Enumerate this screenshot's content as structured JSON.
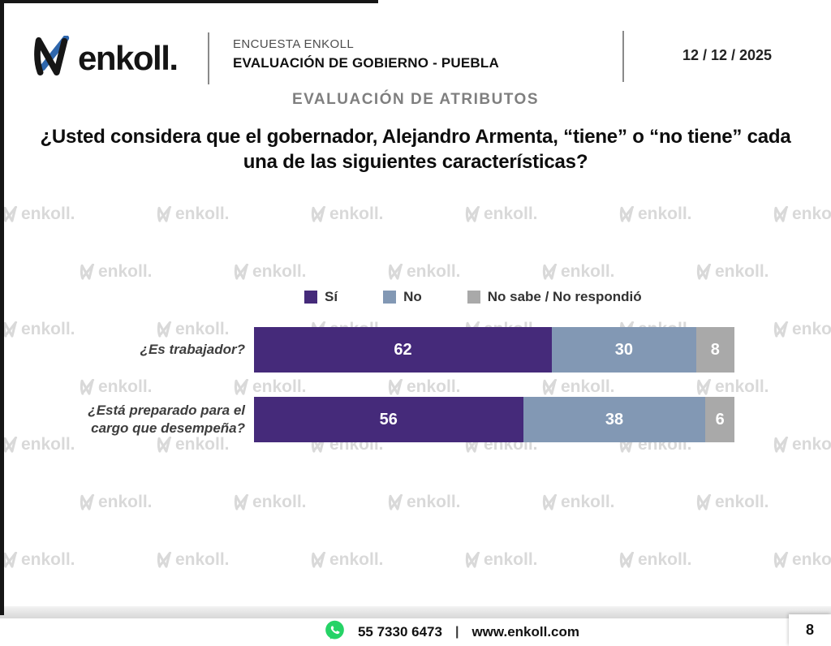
{
  "header": {
    "logo_text": "enkoll.",
    "survey_label": "ENCUESTA ENKOLL",
    "survey_title": "EVALUACIÓN DE GOBIERNO - PUEBLA",
    "date": "12 / 12 / 2025",
    "section_title": "EVALUACIÓN DE ATRIBUTOS"
  },
  "question": "¿Usted considera que el gobernador, Alejandro Armenta, “tiene” o “no tiene” cada una de las siguientes características?",
  "chart_data": {
    "type": "bar",
    "orientation": "horizontal",
    "stacked": true,
    "xlim": [
      0,
      100
    ],
    "legend_position": "top",
    "value_labels": "inside, white, bold",
    "categories": [
      "¿Es trabajador?",
      "¿Está preparado para el cargo que desempeña?"
    ],
    "series": [
      {
        "name": "Sí",
        "color": "#452a7a",
        "values": [
          62,
          56
        ]
      },
      {
        "name": "No",
        "color": "#8298b4",
        "values": [
          30,
          38
        ]
      },
      {
        "name": "No sabe / No respondió",
        "color": "#a9a9a9",
        "values": [
          8,
          6
        ]
      }
    ]
  },
  "watermark": {
    "text": "enkoll.",
    "color": "#d9d9d9"
  },
  "colors": {
    "logo_black": "#161616",
    "logo_blue": "#2e66ac"
  },
  "footer": {
    "phone": "55 7330 6473",
    "separator": "|",
    "website": "www.enkoll.com",
    "page_number": "8",
    "whatsapp_color": "#25D366"
  }
}
